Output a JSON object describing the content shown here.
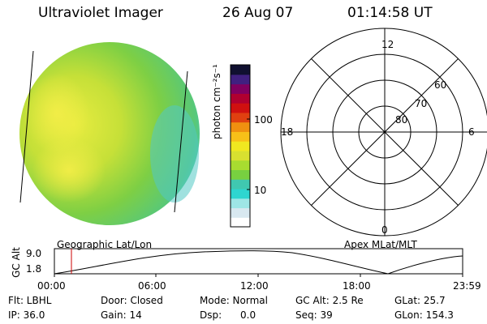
{
  "header": {
    "instrument": "Ultraviolet Imager",
    "date": "26 Aug 07",
    "time": "01:14:58 UT"
  },
  "colorbar": {
    "unit_label": "photon cm⁻²s⁻¹",
    "tick_100": "100",
    "tick_10": "10",
    "colors": [
      "#ffffff",
      "#d8e8f0",
      "#9ee6e6",
      "#2ed6d0",
      "#40c8b0",
      "#78d040",
      "#a8dc30",
      "#d8e030",
      "#f0e820",
      "#f8c018",
      "#f09010",
      "#e04010",
      "#d01010",
      "#b00030",
      "#800060",
      "#402080",
      "#101030"
    ]
  },
  "polar_plot": {
    "label_top": "12",
    "label_bottom": "0",
    "label_left": "18",
    "label_right": "6",
    "ring_60": "60",
    "ring_70": "70",
    "ring_80": "80"
  },
  "orbit_plot": {
    "left_caption": "Geographic Lat/Lon",
    "right_caption": "Apex MLat/MLT",
    "y_axis_label": "GC Alt",
    "y_max": "9.0",
    "y_min": "1.8",
    "x_ticks": [
      "00:00",
      "06:00",
      "12:00",
      "18:00",
      "23:59"
    ],
    "current_time_color": "#cc0000"
  },
  "info_panel": {
    "filter": "Flt: LBHL",
    "ip": "IP: 36.0",
    "door": "Door: Closed",
    "gain": "Gain: 14",
    "mode": "Mode: Normal",
    "dsp_label": "Dsp:",
    "dsp_value": "0.0",
    "gc_alt": "GC Alt: 2.5 Re",
    "seq": "Seq: 39",
    "glat": "GLat: 25.7",
    "glon": "GLon: 154.3"
  }
}
